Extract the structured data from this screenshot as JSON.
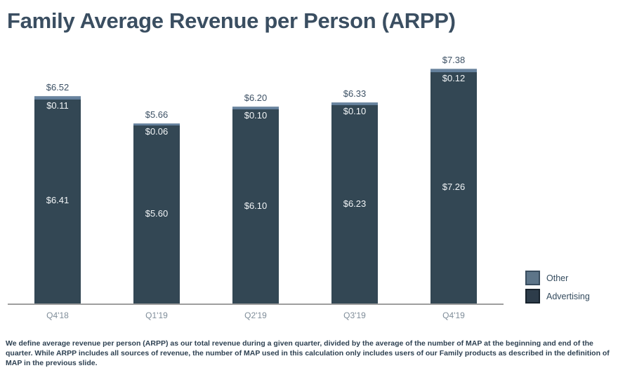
{
  "title": "Family Average Revenue per Person (ARPP)",
  "chart_data": {
    "type": "bar",
    "stacked": true,
    "title": "Family Average Revenue per Person (ARPP)",
    "categories": [
      "Q4'18",
      "Q1'19",
      "Q2'19",
      "Q3'19",
      "Q4'19"
    ],
    "series": [
      {
        "name": "Advertising",
        "color": "#334754",
        "values": [
          6.41,
          5.6,
          6.1,
          6.23,
          7.26
        ]
      },
      {
        "name": "Other",
        "color": "#64809c",
        "values": [
          0.11,
          0.06,
          0.1,
          0.1,
          0.12
        ]
      }
    ],
    "totals": [
      6.52,
      5.66,
      6.2,
      6.33,
      7.38
    ],
    "value_prefix": "$",
    "xlabel": "",
    "ylabel": "",
    "ylim": [
      0,
      8
    ],
    "grid": false,
    "legend_position": "right-bottom",
    "legend_items": [
      {
        "label": "Other",
        "color": "#5d7589"
      },
      {
        "label": "Advertising",
        "color": "#2d3c4a"
      }
    ]
  },
  "footnote": "We define average revenue per person (ARPP) as our total revenue during a given quarter, divided by the average of the number of MAP at the beginning and end of the quarter. While ARPP includes all sources of revenue, the number of MAP used in this calculation only includes users of our Family products as described in the definition of MAP in the previous slide."
}
